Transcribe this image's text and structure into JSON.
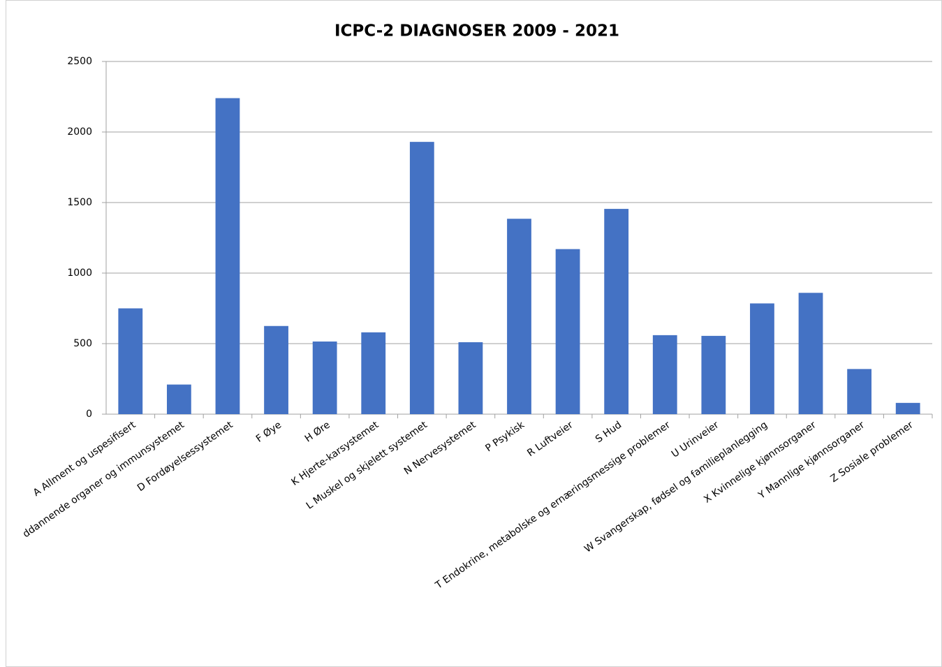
{
  "chart_data": {
    "type": "bar",
    "title": "ICPC-2 DIAGNOSER 2009 - 2021",
    "categories": [
      "A Allment og uspesifisert",
      "ddannende organer og immunsystemet",
      "D Fordøyelsessystemet",
      "F Øye",
      "H Øre",
      "K Hjerte-karsystemet",
      "L Muskel og skjelett systemet",
      "N Nervesystemet",
      "P Psykisk",
      "R Luftveier",
      "S Hud",
      "T Endokrine, metabolske og ernæringsmessige problemer",
      "U Urinveier",
      "W Svangerskap, fødsel og familieplanlegging",
      "X Kvinnelige kjønnsorganer",
      "Y Mannlige kjønnsorganer",
      "Z Sosiale problemer"
    ],
    "values": [
      750,
      210,
      2240,
      625,
      515,
      580,
      1930,
      510,
      1385,
      1170,
      1455,
      560,
      555,
      785,
      860,
      320,
      80
    ],
    "color": "#4472c4",
    "ylim": [
      0,
      2500
    ],
    "yticks": [
      0,
      500,
      1000,
      1500,
      2000,
      2500
    ],
    "grid": true
  }
}
